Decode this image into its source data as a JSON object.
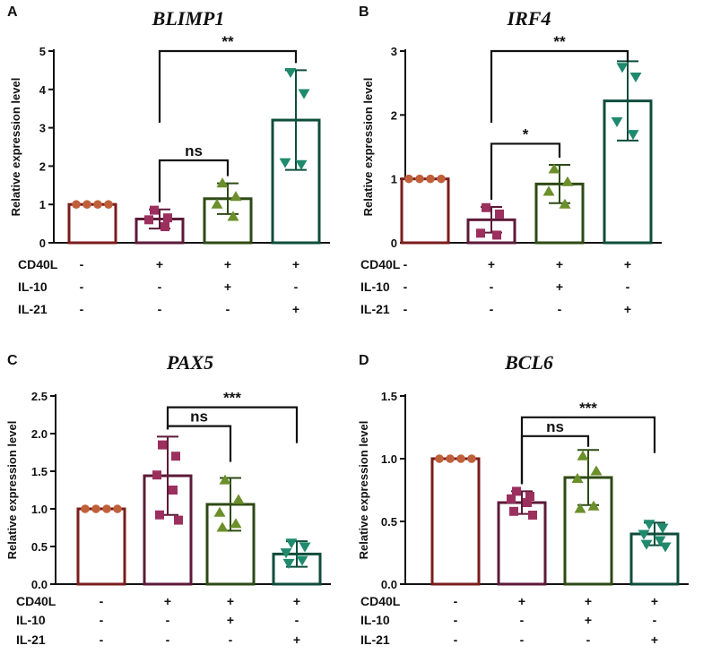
{
  "figure": {
    "row_labels": [
      "CD40L",
      "IL-10",
      "IL-21"
    ]
  },
  "chart_data": [
    {
      "panel": "A",
      "type": "bar",
      "title": "BLIMP1",
      "ylabel": "Relative expression level",
      "ylim": [
        0,
        5
      ],
      "yticks": [
        0,
        1,
        2,
        3,
        4,
        5
      ],
      "yticklabels": [
        "0",
        "1",
        "2",
        "3",
        "4",
        "5"
      ],
      "categories": [
        "control",
        "CD40L",
        "CD40L+IL-10",
        "CD40L+IL-21"
      ],
      "treatments": {
        "CD40L": [
          "-",
          "+",
          "+",
          "+"
        ],
        "IL-10": [
          "-",
          "-",
          "+",
          "-"
        ],
        "IL-21": [
          "-",
          "-",
          "-",
          "+"
        ]
      },
      "means": [
        1.0,
        0.62,
        1.15,
        3.2
      ],
      "sd": [
        0.0,
        0.25,
        0.4,
        1.3
      ],
      "points": [
        [
          1.0,
          1.0,
          1.0,
          1.0
        ],
        [
          0.85,
          0.65,
          0.6,
          0.42
        ],
        [
          1.55,
          1.2,
          1.0,
          0.68
        ],
        [
          4.45,
          3.9,
          2.1,
          2.05
        ]
      ],
      "significance": [
        {
          "from": 1,
          "to": 2,
          "label": "ns",
          "y": 2.15
        },
        {
          "from": 1,
          "to": 3,
          "label": "**",
          "y": 5.0
        }
      ]
    },
    {
      "panel": "B",
      "type": "bar",
      "title": "IRF4",
      "ylabel": "Relative expression level",
      "ylim": [
        0,
        3
      ],
      "yticks": [
        0,
        1,
        2,
        3
      ],
      "yticklabels": [
        "0",
        "1",
        "2",
        "3"
      ],
      "categories": [
        "control",
        "CD40L",
        "CD40L+IL-10",
        "CD40L+IL-21"
      ],
      "treatments": {
        "CD40L": [
          "-",
          "+",
          "+",
          "+"
        ],
        "IL-10": [
          "-",
          "-",
          "+",
          "-"
        ],
        "IL-21": [
          "-",
          "-",
          "-",
          "+"
        ]
      },
      "means": [
        1.0,
        0.36,
        0.92,
        2.22
      ],
      "sd": [
        0.0,
        0.2,
        0.3,
        0.62
      ],
      "points": [
        [
          1.0,
          1.0,
          1.0,
          1.0
        ],
        [
          0.55,
          0.45,
          0.15,
          0.12
        ],
        [
          1.15,
          0.95,
          0.8,
          0.6
        ],
        [
          2.75,
          2.6,
          1.9,
          1.7
        ]
      ],
      "significance": [
        {
          "from": 1,
          "to": 2,
          "label": "*",
          "y": 1.55
        },
        {
          "from": 1,
          "to": 3,
          "label": "**",
          "y": 3.0
        }
      ]
    },
    {
      "panel": "C",
      "type": "bar",
      "title": "PAX5",
      "ylabel": "Relative expression level",
      "ylim": [
        0,
        2.5
      ],
      "yticks": [
        0,
        0.5,
        1.0,
        1.5,
        2.0,
        2.5
      ],
      "yticklabels": [
        "0.0",
        "0.5",
        "1.0",
        "1.5",
        "2.0",
        "2.5"
      ],
      "categories": [
        "control",
        "CD40L",
        "CD40L+IL-10",
        "CD40L+IL-21"
      ],
      "treatments": {
        "CD40L": [
          "-",
          "+",
          "+",
          "+"
        ],
        "IL-10": [
          "-",
          "-",
          "+",
          "-"
        ],
        "IL-21": [
          "-",
          "-",
          "-",
          "+"
        ]
      },
      "means": [
        1.0,
        1.44,
        1.06,
        0.4
      ],
      "sd": [
        0.0,
        0.52,
        0.35,
        0.17
      ],
      "points": [
        [
          1.0,
          1.0,
          1.0,
          1.0
        ],
        [
          1.85,
          1.7,
          1.45,
          1.25,
          0.92,
          0.85
        ],
        [
          1.38,
          1.12,
          0.95,
          0.8,
          0.75
        ],
        [
          0.55,
          0.5,
          0.42,
          0.32,
          0.28
        ]
      ],
      "significance": [
        {
          "from": 1,
          "to": 2,
          "label": "ns",
          "y": 2.1
        },
        {
          "from": 1,
          "to": 3,
          "label": "***",
          "y": 2.35
        }
      ]
    },
    {
      "panel": "D",
      "type": "bar",
      "title": "BCL6",
      "ylabel": "Relative expression level",
      "ylim": [
        0,
        1.5
      ],
      "yticks": [
        0,
        0.5,
        1.0,
        1.5
      ],
      "yticklabels": [
        "0.0",
        "0.5",
        "1.0",
        "1.5"
      ],
      "categories": [
        "control",
        "CD40L",
        "CD40L+IL-10",
        "CD40L+IL-21"
      ],
      "treatments": {
        "CD40L": [
          "-",
          "+",
          "+",
          "+"
        ],
        "IL-10": [
          "-",
          "-",
          "+",
          "-"
        ],
        "IL-21": [
          "-",
          "-",
          "-",
          "+"
        ]
      },
      "means": [
        1.0,
        0.65,
        0.85,
        0.4
      ],
      "sd": [
        0.0,
        0.09,
        0.22,
        0.09
      ],
      "points": [
        [
          1.0,
          1.0,
          1.0,
          1.0
        ],
        [
          0.74,
          0.7,
          0.68,
          0.65,
          0.58,
          0.55
        ],
        [
          1.02,
          0.9,
          0.84,
          0.62,
          0.6
        ],
        [
          0.48,
          0.45,
          0.4,
          0.35,
          0.32,
          0.3
        ]
      ],
      "significance": [
        {
          "from": 1,
          "to": 2,
          "label": "ns",
          "y": 1.18
        },
        {
          "from": 1,
          "to": 3,
          "label": "***",
          "y": 1.33
        }
      ]
    }
  ],
  "colors": {
    "bars": [
      "#7b1c1c",
      "#5c1a38",
      "#2d4a14",
      "#0f4d3b"
    ],
    "markers": [
      "#c0603a",
      "#9b2f5e",
      "#6b8f2a",
      "#1f8a6d"
    ]
  }
}
